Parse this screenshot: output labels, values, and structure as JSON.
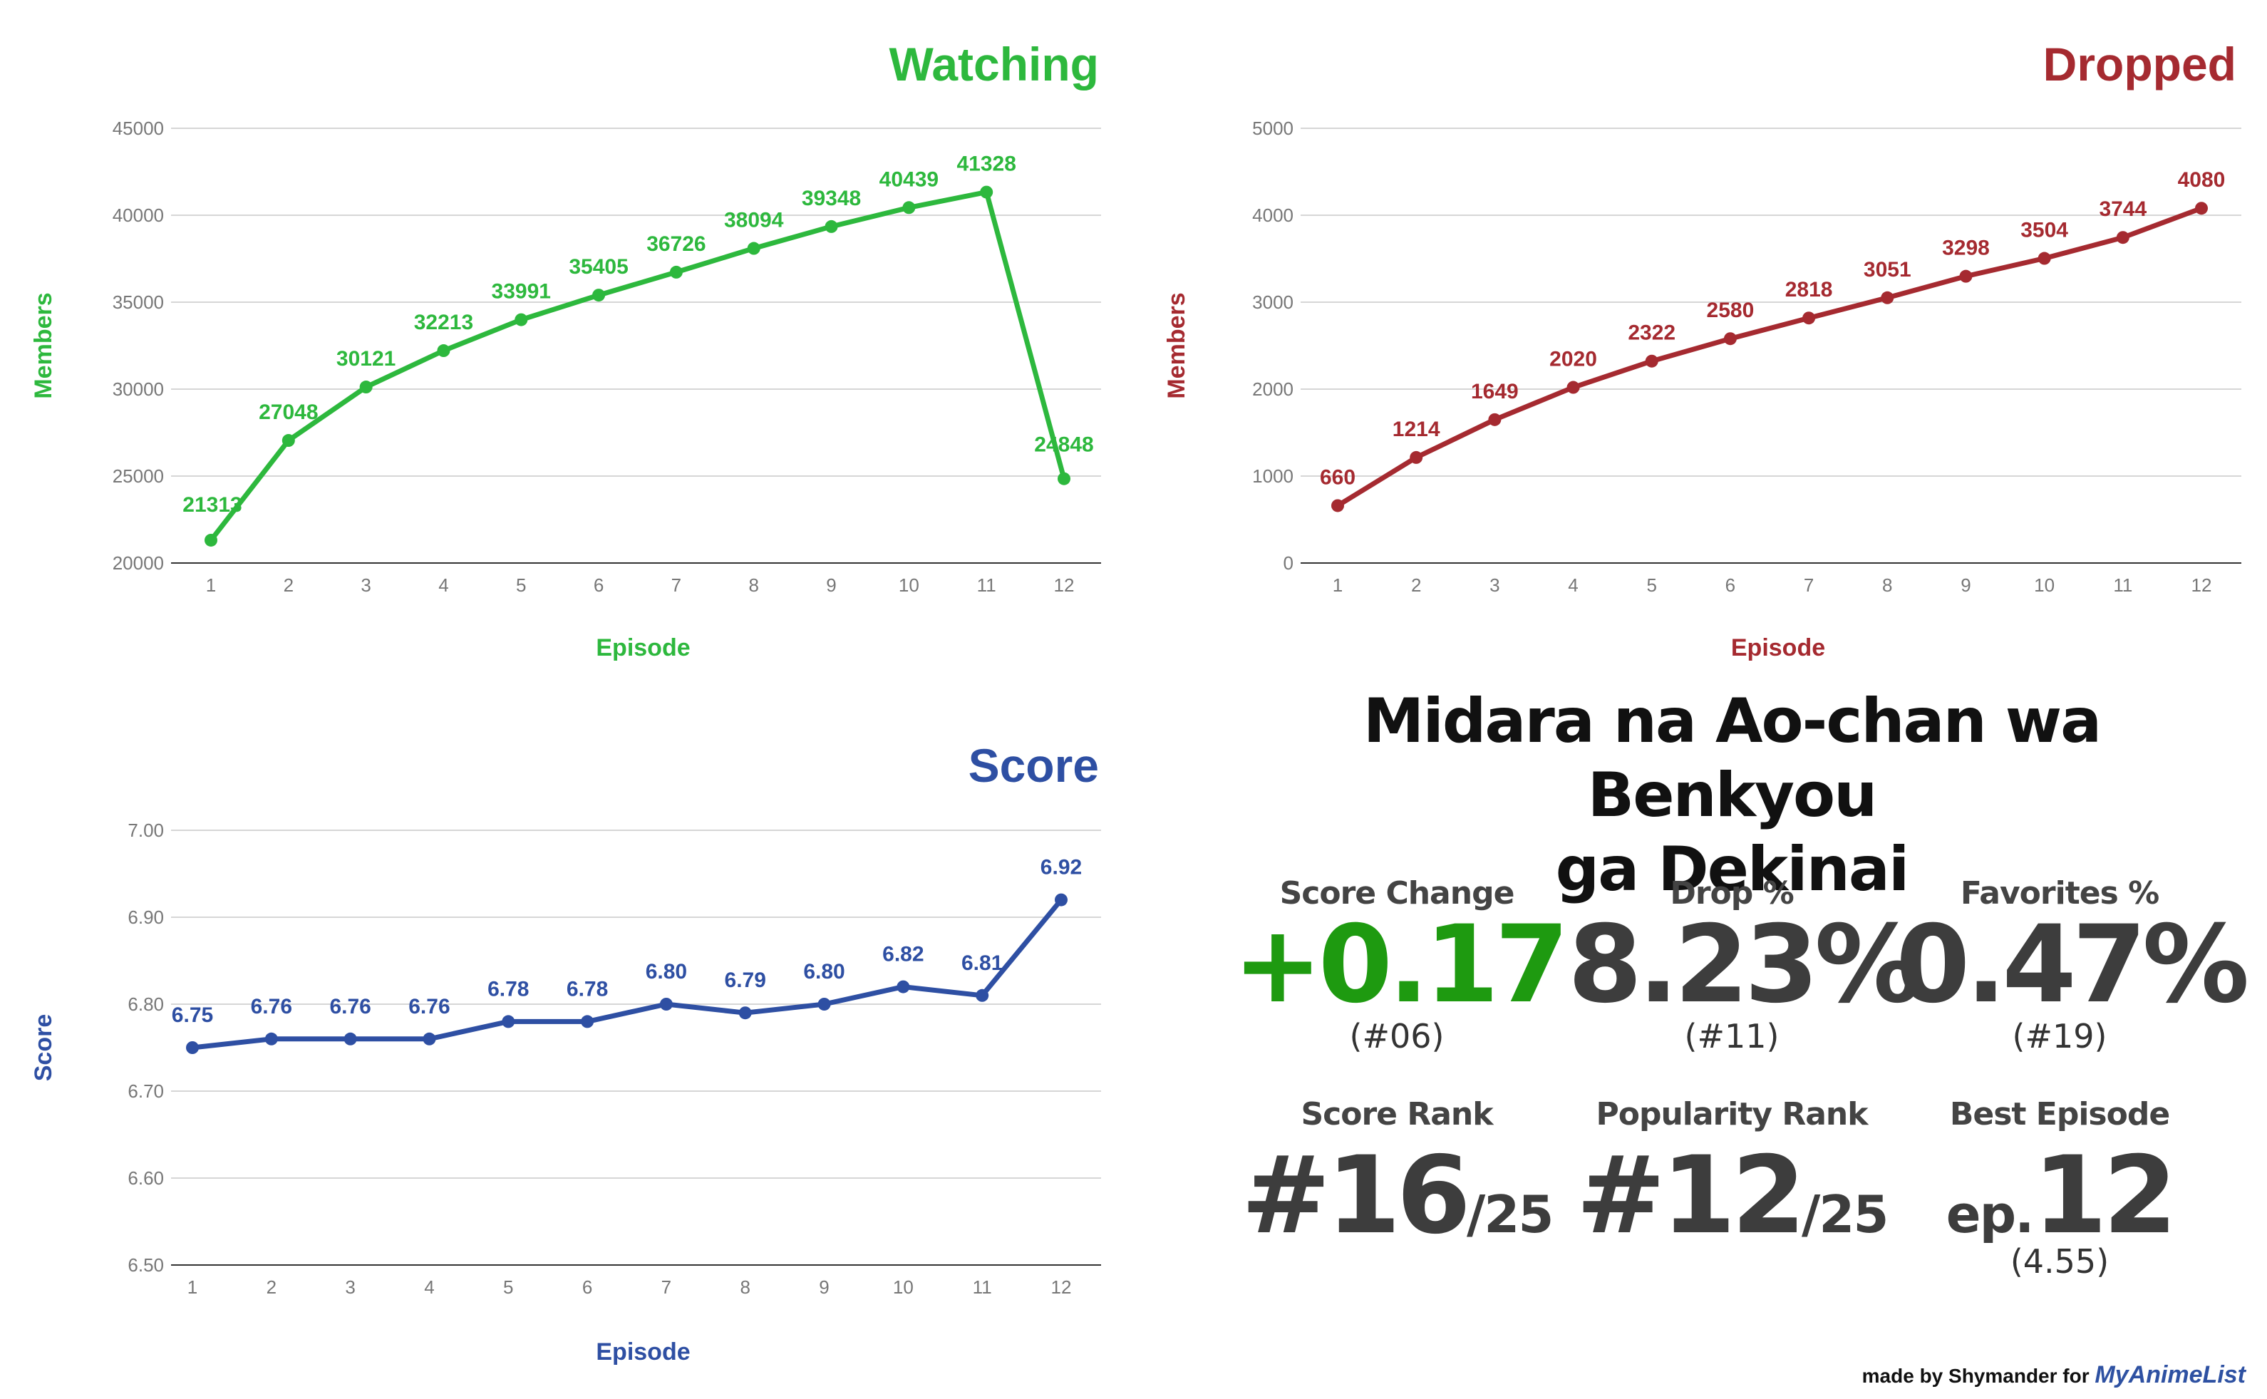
{
  "chart_data": [
    {
      "id": "watching",
      "type": "line",
      "title": "Watching",
      "xlabel": "Episode",
      "ylabel": "Members",
      "color": "#2db83d",
      "x": [
        "1",
        "2",
        "3",
        "4",
        "5",
        "6",
        "7",
        "8",
        "9",
        "10",
        "11",
        "12"
      ],
      "values": [
        21313,
        27048,
        30121,
        32213,
        33991,
        35405,
        36726,
        38094,
        39348,
        40439,
        41328,
        24848
      ],
      "value_labels": [
        "21313",
        "27048",
        "30121",
        "32213",
        "33991",
        "35405",
        "36726",
        "38094",
        "39348",
        "40439",
        "41328",
        "24848"
      ],
      "ylim": [
        20000,
        45000
      ],
      "yticks": [
        20000,
        25000,
        30000,
        35000,
        40000,
        45000
      ],
      "ytick_labels": [
        "20000",
        "25000",
        "30000",
        "35000",
        "40000",
        "45000"
      ],
      "grid": true,
      "legend": "none"
    },
    {
      "id": "dropped",
      "type": "line",
      "title": "Dropped",
      "xlabel": "Episode",
      "ylabel": "Members",
      "color": "#a52a30",
      "x": [
        "1",
        "2",
        "3",
        "4",
        "5",
        "6",
        "7",
        "8",
        "9",
        "10",
        "11",
        "12"
      ],
      "values": [
        660,
        1214,
        1649,
        2020,
        2322,
        2580,
        2818,
        3051,
        3298,
        3504,
        3744,
        4080
      ],
      "value_labels": [
        "660",
        "1214",
        "1649",
        "2020",
        "2322",
        "2580",
        "2818",
        "3051",
        "3298",
        "3504",
        "3744",
        "4080"
      ],
      "ylim": [
        0,
        5000
      ],
      "yticks": [
        0,
        1000,
        2000,
        3000,
        4000,
        5000
      ],
      "ytick_labels": [
        "0",
        "1000",
        "2000",
        "3000",
        "4000",
        "5000"
      ],
      "grid": true,
      "legend": "none"
    },
    {
      "id": "score",
      "type": "line",
      "title": "Score",
      "xlabel": "Episode",
      "ylabel": "Score",
      "color": "#2e4fa3",
      "x": [
        "1",
        "2",
        "3",
        "4",
        "5",
        "6",
        "7",
        "8",
        "9",
        "10",
        "11",
        "12"
      ],
      "values": [
        6.75,
        6.76,
        6.76,
        6.76,
        6.78,
        6.78,
        6.8,
        6.79,
        6.8,
        6.82,
        6.81,
        6.92
      ],
      "value_labels": [
        "6.75",
        "6.76",
        "6.76",
        "6.76",
        "6.78",
        "6.78",
        "6.80",
        "6.79",
        "6.80",
        "6.82",
        "6.81",
        "6.92"
      ],
      "ylim": [
        6.5,
        7.0
      ],
      "yticks": [
        6.5,
        6.6,
        6.7,
        6.8,
        6.9,
        7.0
      ],
      "ytick_labels": [
        "6.50",
        "6.60",
        "6.70",
        "6.80",
        "6.90",
        "7.00"
      ],
      "grid": true,
      "legend": "none"
    }
  ],
  "info": {
    "title_line1": "Midara na Ao-chan wa Benkyou",
    "title_line2": "ga Dekinai",
    "score_change": {
      "label": "Score Change",
      "value": "+0.17",
      "rank": "(#06)"
    },
    "drop": {
      "label": "Drop %",
      "value": "8.23%",
      "rank": "(#11)"
    },
    "favorites": {
      "label": "Favorites %",
      "value": "0.47%",
      "rank": "(#19)"
    },
    "score_rank": {
      "label": "Score Rank",
      "value": "#16",
      "total": "/25"
    },
    "popularity_rank": {
      "label": "Popularity Rank",
      "value": "#12",
      "total": "/25"
    },
    "best_episode": {
      "label": "Best Episode",
      "prefix": "ep.",
      "value": "12",
      "score": "(4.55)"
    }
  },
  "credit": {
    "text": "made by Shymander for",
    "brand": "MyAnimeList"
  }
}
